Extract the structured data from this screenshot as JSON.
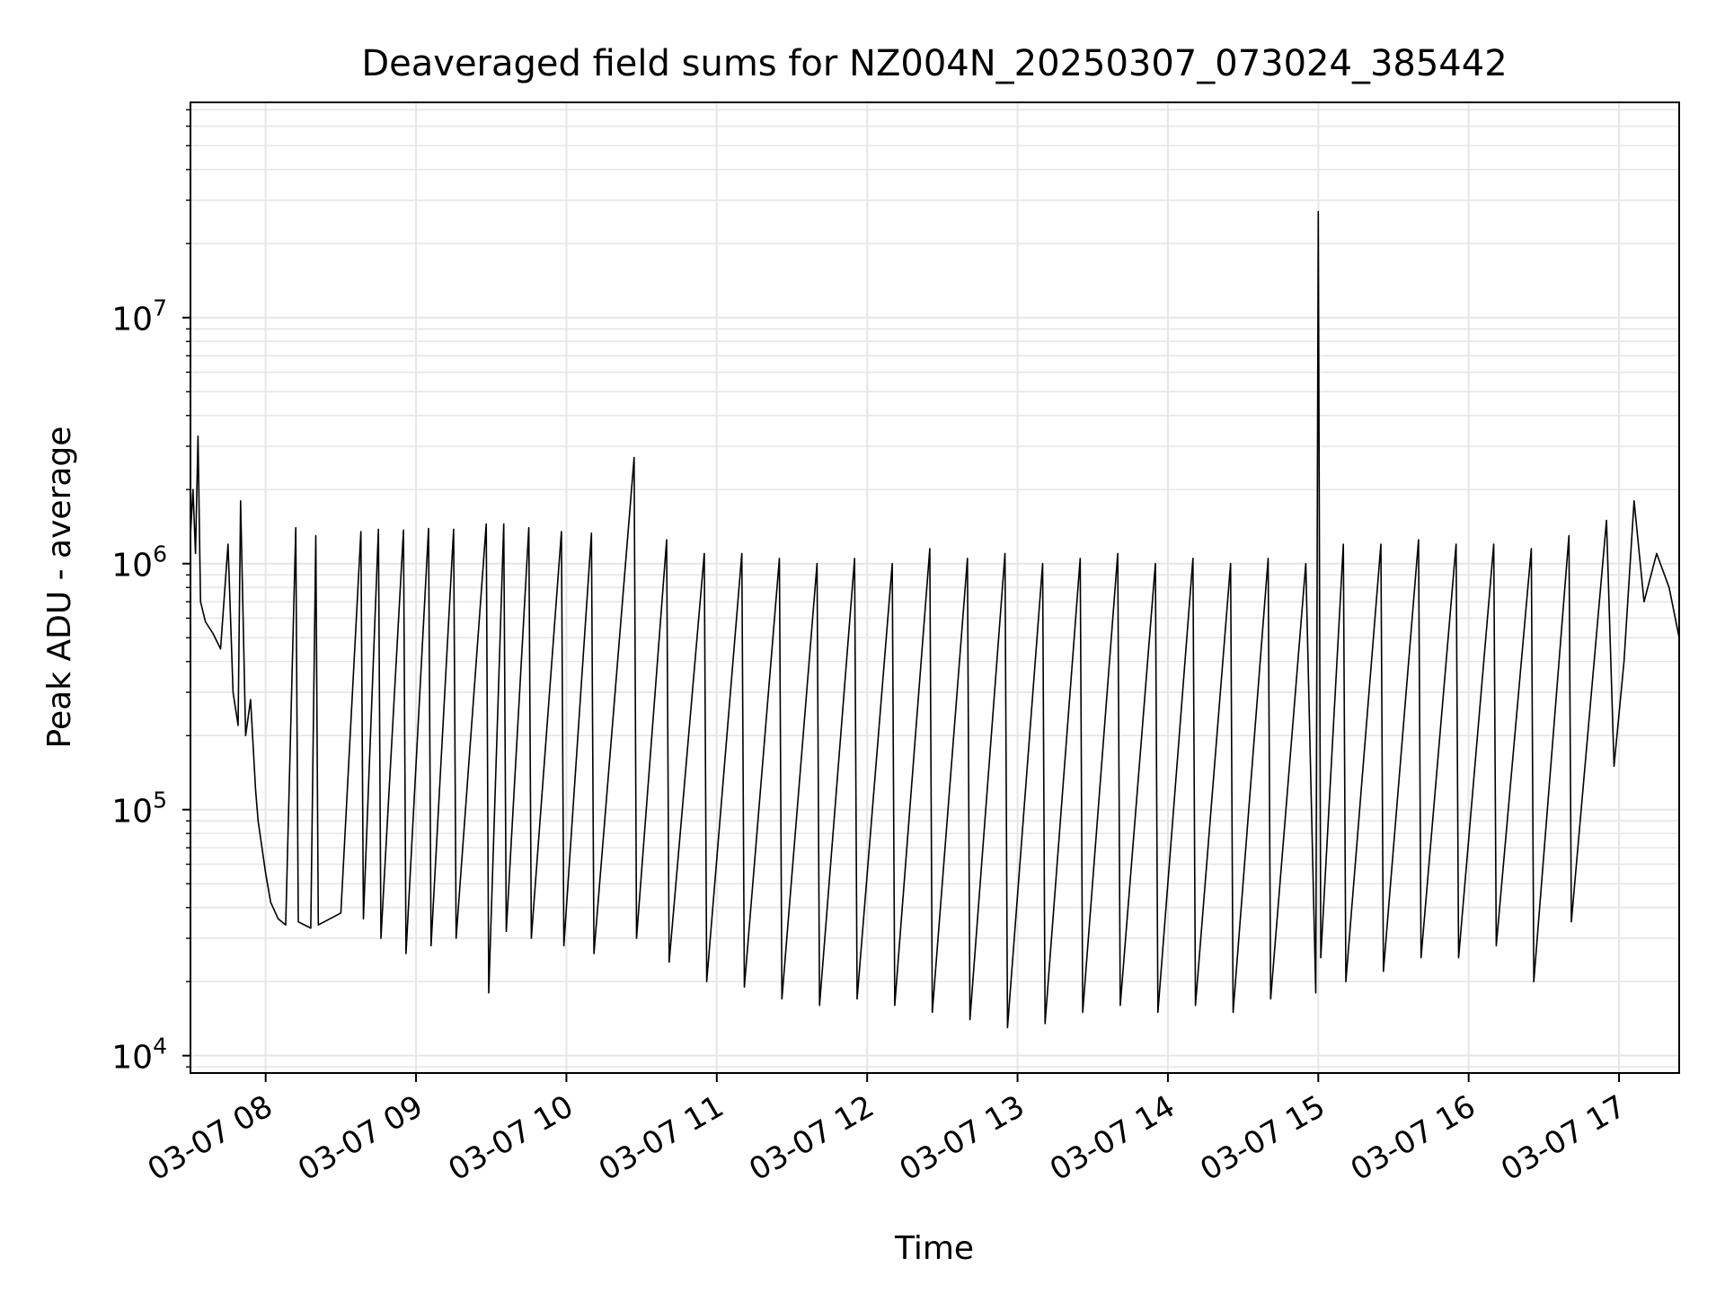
{
  "chart_data": {
    "type": "line",
    "title": "Deaveraged field sums for NZ004N_20250307_073024_385442",
    "xlabel": "Time",
    "ylabel": "Peak ADU - average",
    "x_ticks": [
      "03-07 08",
      "03-07 09",
      "03-07 10",
      "03-07 11",
      "03-07 12",
      "03-07 13",
      "03-07 14",
      "03-07 15",
      "03-07 16",
      "03-07 17"
    ],
    "y_ticks": [
      {
        "value": 10000,
        "base": "10",
        "exp": "4"
      },
      {
        "value": 100000,
        "base": "10",
        "exp": "5"
      },
      {
        "value": 1000000,
        "base": "10",
        "exp": "6"
      },
      {
        "value": 10000000,
        "base": "10",
        "exp": "7"
      }
    ],
    "xlim": [
      "2025-03-07 07:30",
      "2025-03-07 17:24"
    ],
    "ylim": [
      8500,
      75000000
    ],
    "yscale": "log",
    "grid": true,
    "line_color": "#000000",
    "grid_color": "#e6e6e6",
    "series": [
      {
        "values": [
          [
            "2025-03-07 07:30",
            1300000
          ],
          [
            "2025-03-07 07:31",
            2000000
          ],
          [
            "2025-03-07 07:32",
            1100000
          ],
          [
            "2025-03-07 07:33",
            3300000
          ],
          [
            "2025-03-07 07:34",
            700000
          ],
          [
            "2025-03-07 07:36",
            580000
          ],
          [
            "2025-03-07 07:39",
            520000
          ],
          [
            "2025-03-07 07:42",
            450000
          ],
          [
            "2025-03-07 07:45",
            1200000
          ],
          [
            "2025-03-07 07:47",
            300000
          ],
          [
            "2025-03-07 07:49",
            220000
          ],
          [
            "2025-03-07 07:50",
            1800000
          ],
          [
            "2025-03-07 07:52",
            200000
          ],
          [
            "2025-03-07 07:54",
            280000
          ],
          [
            "2025-03-07 07:56",
            120000
          ],
          [
            "2025-03-07 07:57",
            90000
          ],
          [
            "2025-03-07 08:00",
            55000
          ],
          [
            "2025-03-07 08:02",
            42000
          ],
          [
            "2025-03-07 08:05",
            36000
          ],
          [
            "2025-03-07 08:08",
            34000
          ],
          [
            "2025-03-07 08:12",
            1400000
          ],
          [
            "2025-03-07 08:13",
            35000
          ],
          [
            "2025-03-07 08:18",
            33000
          ],
          [
            "2025-03-07 08:20",
            1300000
          ],
          [
            "2025-03-07 08:21",
            34000
          ],
          [
            "2025-03-07 08:30",
            38000
          ],
          [
            "2025-03-07 08:38",
            1350000
          ],
          [
            "2025-03-07 08:39",
            36000
          ],
          [
            "2025-03-07 08:45",
            1380000
          ],
          [
            "2025-03-07 08:46",
            30000
          ],
          [
            "2025-03-07 08:55",
            1370000
          ],
          [
            "2025-03-07 08:56",
            26000
          ],
          [
            "2025-03-07 09:05",
            1390000
          ],
          [
            "2025-03-07 09:06",
            28000
          ],
          [
            "2025-03-07 09:15",
            1380000
          ],
          [
            "2025-03-07 09:16",
            30000
          ],
          [
            "2025-03-07 09:28",
            1450000
          ],
          [
            "2025-03-07 09:29",
            18000
          ],
          [
            "2025-03-07 09:35",
            1450000
          ],
          [
            "2025-03-07 09:36",
            32000
          ],
          [
            "2025-03-07 09:45",
            1400000
          ],
          [
            "2025-03-07 09:46",
            30000
          ],
          [
            "2025-03-07 09:58",
            1350000
          ],
          [
            "2025-03-07 09:59",
            28000
          ],
          [
            "2025-03-07 10:10",
            1330000
          ],
          [
            "2025-03-07 10:11",
            26000
          ],
          [
            "2025-03-07 10:27",
            2700000
          ],
          [
            "2025-03-07 10:28",
            30000
          ],
          [
            "2025-03-07 10:40",
            1250000
          ],
          [
            "2025-03-07 10:41",
            24000
          ],
          [
            "2025-03-07 10:55",
            1100000
          ],
          [
            "2025-03-07 10:56",
            20000
          ],
          [
            "2025-03-07 11:10",
            1100000
          ],
          [
            "2025-03-07 11:11",
            19000
          ],
          [
            "2025-03-07 11:25",
            1050000
          ],
          [
            "2025-03-07 11:26",
            17000
          ],
          [
            "2025-03-07 11:40",
            1000000
          ],
          [
            "2025-03-07 11:41",
            16000
          ],
          [
            "2025-03-07 11:55",
            1050000
          ],
          [
            "2025-03-07 11:56",
            17000
          ],
          [
            "2025-03-07 12:10",
            1000000
          ],
          [
            "2025-03-07 12:11",
            16000
          ],
          [
            "2025-03-07 12:25",
            1150000
          ],
          [
            "2025-03-07 12:26",
            15000
          ],
          [
            "2025-03-07 12:40",
            1050000
          ],
          [
            "2025-03-07 12:41",
            14000
          ],
          [
            "2025-03-07 12:55",
            1100000
          ],
          [
            "2025-03-07 12:56",
            13000
          ],
          [
            "2025-03-07 13:10",
            1000000
          ],
          [
            "2025-03-07 13:11",
            13500
          ],
          [
            "2025-03-07 13:25",
            1050000
          ],
          [
            "2025-03-07 13:26",
            15000
          ],
          [
            "2025-03-07 13:40",
            1100000
          ],
          [
            "2025-03-07 13:41",
            16000
          ],
          [
            "2025-03-07 13:55",
            1000000
          ],
          [
            "2025-03-07 13:56",
            15000
          ],
          [
            "2025-03-07 14:10",
            1050000
          ],
          [
            "2025-03-07 14:11",
            16000
          ],
          [
            "2025-03-07 14:25",
            1000000
          ],
          [
            "2025-03-07 14:26",
            15000
          ],
          [
            "2025-03-07 14:40",
            1050000
          ],
          [
            "2025-03-07 14:41",
            17000
          ],
          [
            "2025-03-07 14:55",
            1000000
          ],
          [
            "2025-03-07 14:59",
            18000
          ],
          [
            "2025-03-07 15:00",
            27000000
          ],
          [
            "2025-03-07 15:01",
            25000
          ],
          [
            "2025-03-07 15:10",
            1200000
          ],
          [
            "2025-03-07 15:11",
            20000
          ],
          [
            "2025-03-07 15:25",
            1200000
          ],
          [
            "2025-03-07 15:26",
            22000
          ],
          [
            "2025-03-07 15:40",
            1250000
          ],
          [
            "2025-03-07 15:41",
            25000
          ],
          [
            "2025-03-07 15:55",
            1200000
          ],
          [
            "2025-03-07 15:56",
            25000
          ],
          [
            "2025-03-07 16:10",
            1200000
          ],
          [
            "2025-03-07 16:11",
            28000
          ],
          [
            "2025-03-07 16:25",
            1150000
          ],
          [
            "2025-03-07 16:26",
            20000
          ],
          [
            "2025-03-07 16:40",
            1300000
          ],
          [
            "2025-03-07 16:41",
            35000
          ],
          [
            "2025-03-07 16:55",
            1500000
          ],
          [
            "2025-03-07 16:58",
            150000
          ],
          [
            "2025-03-07 17:02",
            400000
          ],
          [
            "2025-03-07 17:06",
            1800000
          ],
          [
            "2025-03-07 17:10",
            700000
          ],
          [
            "2025-03-07 17:15",
            1100000
          ],
          [
            "2025-03-07 17:20",
            800000
          ],
          [
            "2025-03-07 17:24",
            500000
          ]
        ]
      }
    ]
  }
}
